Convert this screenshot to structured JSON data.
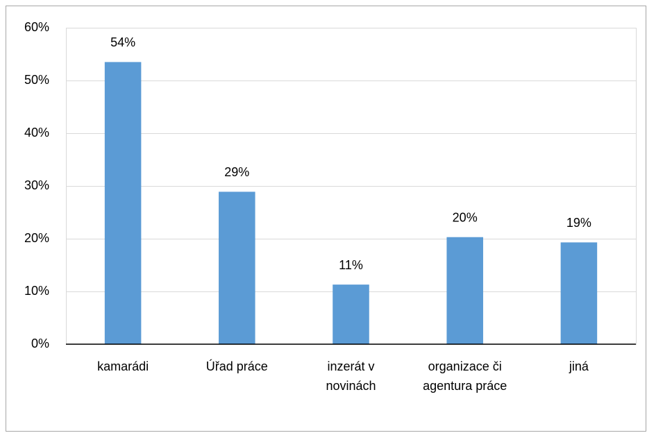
{
  "chart_data": {
    "type": "bar",
    "categories": [
      "kamarádi",
      "Úřad práce",
      "inzerát v novinách",
      "organizace či agentura práce",
      "jiná"
    ],
    "values": [
      53.5,
      28.9,
      11.3,
      20.3,
      19.3
    ],
    "value_labels": [
      "54%",
      "29%",
      "11%",
      "20%",
      "19%"
    ],
    "color": "#5b9bd5",
    "ylim": [
      0,
      60
    ],
    "yticks": [
      {
        "value": 0,
        "label": "0%"
      },
      {
        "value": 10,
        "label": "10%"
      },
      {
        "value": 20,
        "label": "20%"
      },
      {
        "value": 30,
        "label": "30%"
      },
      {
        "value": 40,
        "label": "40%"
      },
      {
        "value": 50,
        "label": "50%"
      },
      {
        "value": 60,
        "label": "60%"
      }
    ],
    "grid": true
  }
}
